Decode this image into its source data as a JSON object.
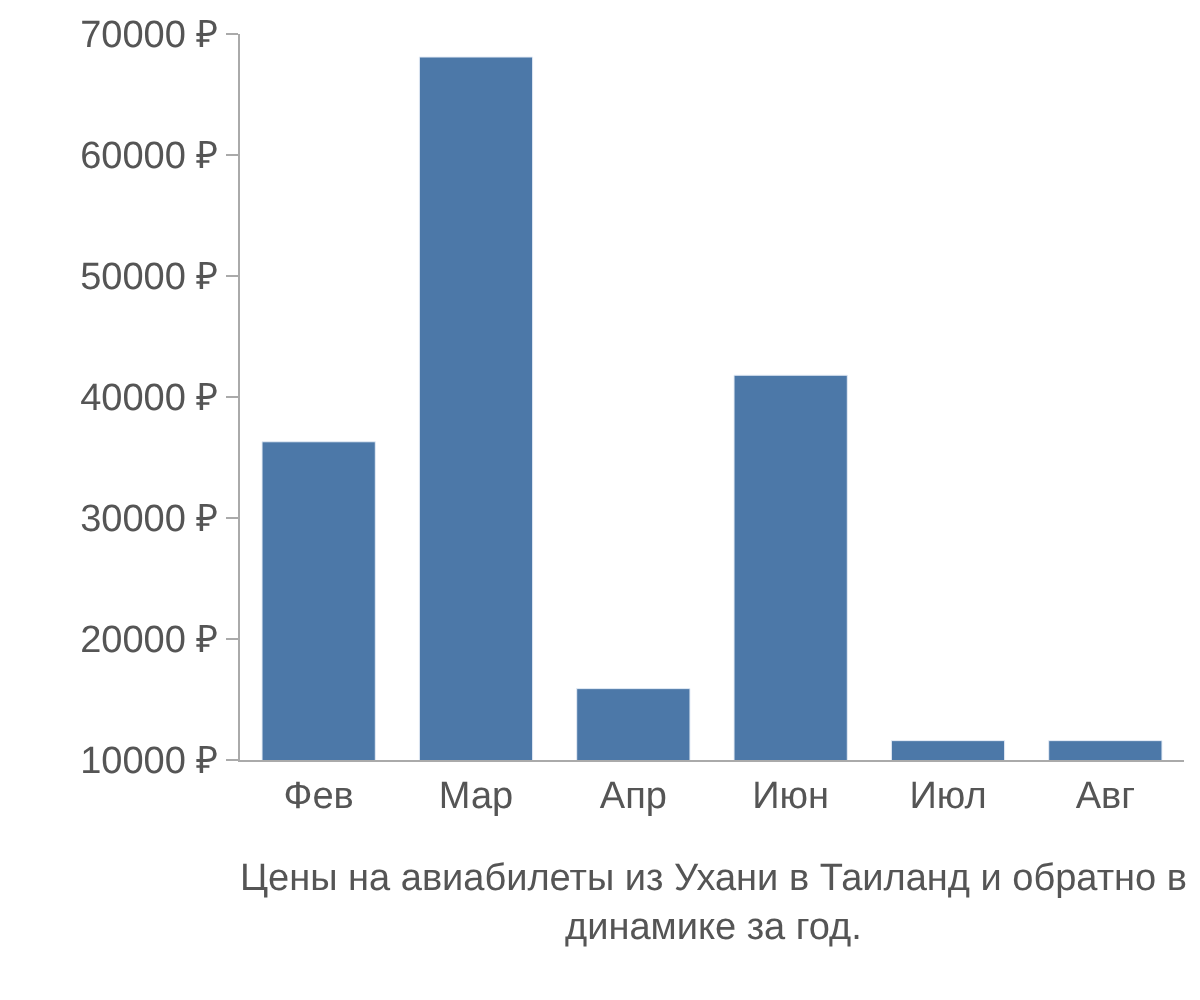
{
  "chart_data": {
    "type": "bar",
    "title": "Цены на авиабилеты из Ухани в Таиланд и обратно в динамике за год.",
    "categories": [
      "Фев",
      "Мар",
      "Апр",
      "Июн",
      "Июл",
      "Авг"
    ],
    "values": [
      36300,
      68100,
      15900,
      41800,
      11600,
      11600
    ],
    "color": "#4c78a8",
    "ylim": [
      10000,
      70000
    ],
    "yticks": [
      {
        "value": 10000,
        "label": "10000 ₽"
      },
      {
        "value": 20000,
        "label": "20000 ₽"
      },
      {
        "value": 30000,
        "label": "30000 ₽"
      },
      {
        "value": 40000,
        "label": "40000 ₽"
      },
      {
        "value": 50000,
        "label": "50000 ₽"
      },
      {
        "value": 60000,
        "label": "60000 ₽"
      },
      {
        "value": 70000,
        "label": "70000 ₽"
      }
    ]
  }
}
